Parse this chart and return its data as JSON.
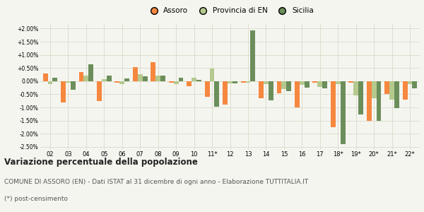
{
  "categories": [
    "02",
    "03",
    "04",
    "05",
    "06",
    "07",
    "08",
    "09",
    "10",
    "11*",
    "12",
    "13",
    "14",
    "15",
    "16",
    "17",
    "18*",
    "19*",
    "20*",
    "21*",
    "22*"
  ],
  "assoro": [
    0.3,
    -0.8,
    0.35,
    -0.75,
    -0.05,
    0.52,
    0.73,
    -0.05,
    -0.2,
    -0.6,
    -0.9,
    -0.05,
    -0.65,
    -0.45,
    -1.0,
    -0.05,
    -1.75,
    -0.05,
    -1.5,
    -0.5,
    -0.7
  ],
  "provincia": [
    -0.1,
    -0.05,
    0.2,
    0.08,
    -0.12,
    0.27,
    0.22,
    -0.1,
    0.12,
    0.48,
    -0.08,
    -0.06,
    -0.1,
    -0.3,
    -0.15,
    -0.22,
    -0.1,
    -0.55,
    -0.65,
    -0.7,
    -0.12
  ],
  "sicilia": [
    0.12,
    -0.32,
    0.65,
    0.22,
    0.1,
    0.18,
    0.2,
    0.14,
    0.05,
    -0.98,
    -0.08,
    1.93,
    -0.72,
    -0.38,
    -0.25,
    -0.28,
    -2.4,
    -1.28,
    -1.5,
    -1.02,
    -0.28
  ],
  "assoro_color": "#f5873f",
  "provincia_color": "#b5c98e",
  "sicilia_color": "#6b8e5a",
  "bg_color": "#f5f5f0",
  "grid_color": "#ddddcc",
  "title": "Variazione percentuale della popolazione",
  "subtitle1": "COMUNE DI ASSORO (EN) - Dati ISTAT al 31 dicembre di ogni anno - Elaborazione TUTTITALIA.IT",
  "subtitle2": "(*) post-censimento",
  "ylim": [
    -2.6,
    2.2
  ],
  "yticks": [
    -2.5,
    -2.0,
    -1.5,
    -1.0,
    -0.5,
    0.0,
    0.5,
    1.0,
    1.5,
    2.0
  ]
}
